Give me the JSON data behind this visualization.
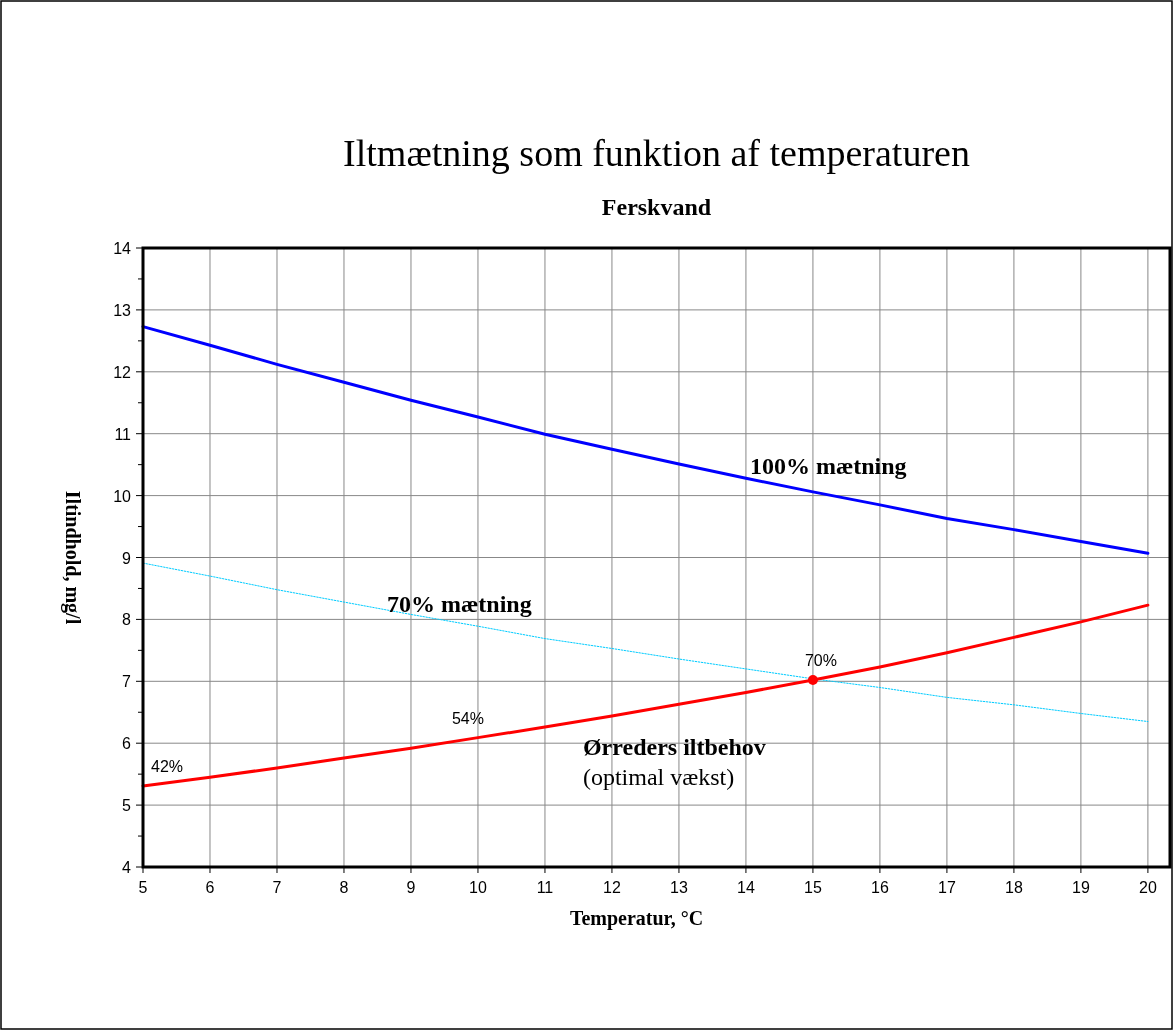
{
  "chart_data": {
    "type": "line",
    "title": "Iltmætning som funktion af temperaturen",
    "subtitle": "Ferskvand",
    "xlabel": "Temperatur, °C",
    "ylabel": "Iltindhold, mg/l",
    "x": [
      5,
      6,
      7,
      8,
      9,
      10,
      11,
      12,
      13,
      14,
      15,
      16,
      17,
      18,
      19,
      20
    ],
    "xlim": [
      5,
      20.33
    ],
    "xticks": [
      5,
      6,
      7,
      8,
      9,
      10,
      11,
      12,
      13,
      14,
      15,
      16,
      17,
      18,
      19,
      20
    ],
    "ylim": [
      4,
      14
    ],
    "yticks": [
      4,
      5,
      6,
      7,
      8,
      9,
      10,
      11,
      12,
      13,
      14
    ],
    "grid": true,
    "marker": "none",
    "series": [
      {
        "name": "100% mætning",
        "color": "#0000ff",
        "line_style": "solid",
        "values": [
          12.73,
          12.43,
          12.12,
          11.83,
          11.54,
          11.27,
          10.99,
          10.75,
          10.51,
          10.28,
          10.06,
          9.85,
          9.63,
          9.45,
          9.26,
          9.07
        ]
      },
      {
        "name": "70% mætning",
        "color": "#00ccff",
        "line_style": "dotted",
        "values": [
          8.91,
          8.7,
          8.48,
          8.28,
          8.08,
          7.89,
          7.69,
          7.53,
          7.36,
          7.2,
          7.04,
          6.9,
          6.74,
          6.62,
          6.48,
          6.35
        ]
      },
      {
        "name": "Ørreders iltbehov",
        "color": "#ff0000",
        "line_style": "solid",
        "values": [
          5.31,
          5.45,
          5.6,
          5.76,
          5.92,
          6.09,
          6.26,
          6.44,
          6.63,
          6.82,
          7.02,
          7.23,
          7.46,
          7.71,
          7.96,
          8.23
        ]
      },
      {
        "type": "scatter",
        "color": "#ff0000",
        "marker": "circle",
        "x": [
          15
        ],
        "values": [
          7.02
        ]
      }
    ],
    "annotations": [
      {
        "text": "42%",
        "x": 5,
        "y": 5.31
      },
      {
        "text": "54%",
        "x": 10,
        "y": 6.09
      },
      {
        "text": "70%",
        "x": 15,
        "y": 7.02
      },
      "(optimal vækst)"
    ]
  }
}
